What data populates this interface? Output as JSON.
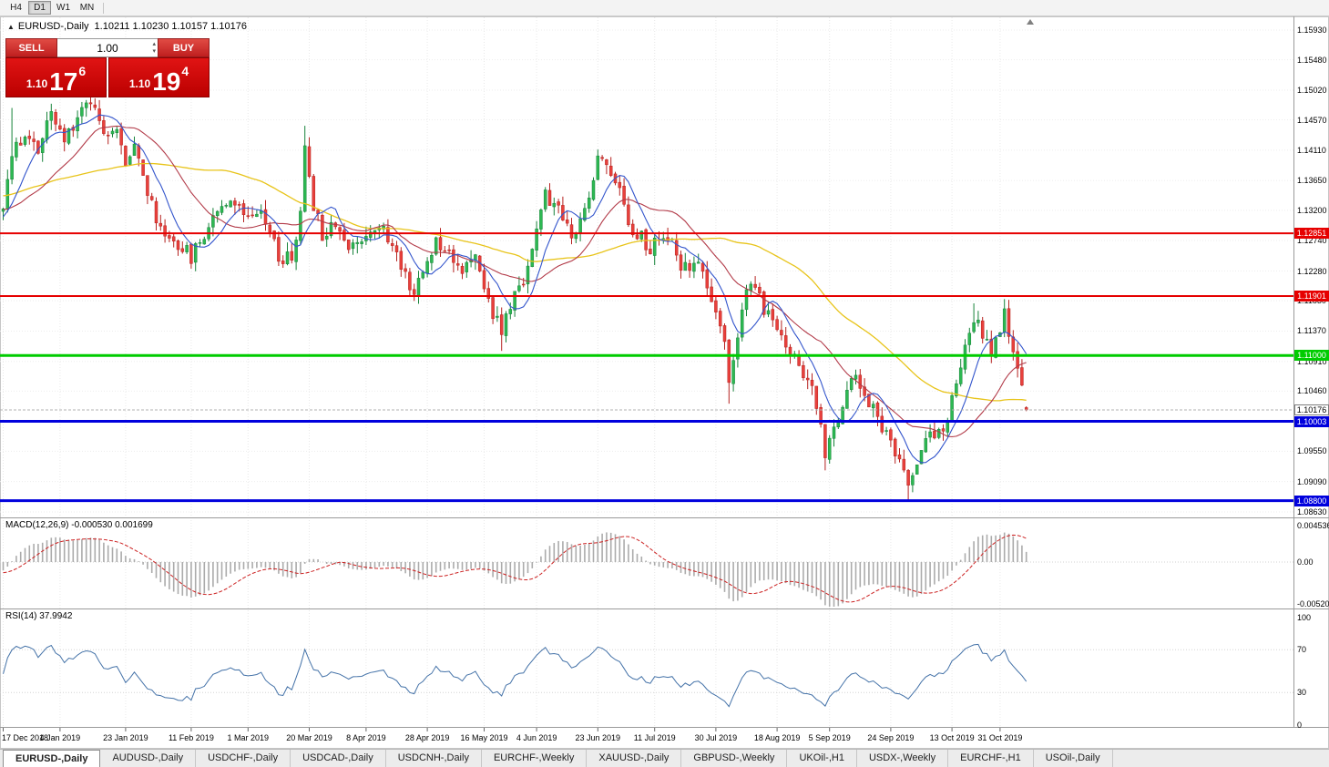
{
  "toolbar": {
    "timeframes": [
      "H4",
      "D1",
      "W1",
      "MN"
    ],
    "active": "D1"
  },
  "chart": {
    "symbol_period": "EURUSD-,Daily",
    "ohlc": "1.10211 1.10230 1.10157 1.10176"
  },
  "trade_panel": {
    "sell_label": "SELL",
    "buy_label": "BUY",
    "volume": "1.00",
    "sell_price": {
      "prefix": "1.10",
      "big": "17",
      "sup": "6"
    },
    "buy_price": {
      "prefix": "1.10",
      "big": "19",
      "sup": "4"
    }
  },
  "price_axis": {
    "labels": [
      "1.15930",
      "1.15480",
      "1.15020",
      "1.14570",
      "1.14110",
      "1.13650",
      "1.13200",
      "1.12740",
      "1.12280",
      "1.11830",
      "1.11370",
      "1.10910",
      "1.10460",
      "1.10000",
      "1.09550",
      "1.09090",
      "1.08630"
    ]
  },
  "hlines": [
    {
      "price": 1.12851,
      "label": "1.12851",
      "color": "#e60000",
      "width": 2
    },
    {
      "price": 1.11901,
      "label": "1.11901",
      "color": "#e60000",
      "width": 2
    },
    {
      "price": 1.11,
      "label": "1.11000",
      "color": "#00cc00",
      "width": 3
    },
    {
      "price": 1.10003,
      "label": "1.10003",
      "color": "#0000dd",
      "width": 3
    },
    {
      "price": 1.088,
      "label": "1.08800",
      "color": "#0000dd",
      "width": 3
    }
  ],
  "current_price": {
    "value": 1.10176,
    "label": "1.10176"
  },
  "macd": {
    "label": "MACD(12,26,9) -0.000530 0.001699",
    "axis": [
      {
        "label": "0.004536",
        "value": 0.004536
      },
      {
        "label": "0.00",
        "value": 0
      },
      {
        "label": "-0.00520",
        "value": -0.0052
      }
    ]
  },
  "rsi": {
    "label": "RSI(14) 37.9942",
    "axis": [
      {
        "label": "100",
        "value": 100
      },
      {
        "label": "70",
        "value": 70
      },
      {
        "label": "30",
        "value": 30
      },
      {
        "label": "0",
        "value": 0
      }
    ],
    "levels": [
      70,
      30
    ]
  },
  "date_axis": [
    {
      "label": "17 Dec 2018",
      "bar": 0
    },
    {
      "label": "4 Jan 2019",
      "bar": 13
    },
    {
      "label": "23 Jan 2019",
      "bar": 28
    },
    {
      "label": "11 Feb 2019",
      "bar": 43
    },
    {
      "label": "1 Mar 2019",
      "bar": 56
    },
    {
      "label": "20 Mar 2019",
      "bar": 70
    },
    {
      "label": "8 Apr 2019",
      "bar": 83
    },
    {
      "label": "28 Apr 2019",
      "bar": 97
    },
    {
      "label": "16 May 2019",
      "bar": 110
    },
    {
      "label": "4 Jun 2019",
      "bar": 122
    },
    {
      "label": "23 Jun 2019",
      "bar": 136
    },
    {
      "label": "11 Jul 2019",
      "bar": 149
    },
    {
      "label": "30 Jul 2019",
      "bar": 163
    },
    {
      "label": "18 Aug 2019",
      "bar": 177
    },
    {
      "label": "5 Sep 2019",
      "bar": 189
    },
    {
      "label": "24 Sep 2019",
      "bar": 203
    },
    {
      "label": "13 Oct 2019",
      "bar": 217
    },
    {
      "label": "31 Oct 2019",
      "bar": 228
    }
  ],
  "tabs": [
    {
      "label": "EURUSD-,Daily",
      "active": true
    },
    {
      "label": "AUDUSD-,Daily",
      "active": false
    },
    {
      "label": "USDCHF-,Daily",
      "active": false
    },
    {
      "label": "USDCAD-,Daily",
      "active": false
    },
    {
      "label": "USDCNH-,Daily",
      "active": false
    },
    {
      "label": "EURCHF-,Weekly",
      "active": false
    },
    {
      "label": "XAUUSD-,Daily",
      "active": false
    },
    {
      "label": "GBPUSD-,Weekly",
      "active": false
    },
    {
      "label": "UKOil-,H1",
      "active": false
    },
    {
      "label": "USDX-,Weekly",
      "active": false
    },
    {
      "label": "EURCHF-,H1",
      "active": false
    },
    {
      "label": "USOil-,Daily",
      "active": false
    }
  ],
  "chart_data": {
    "type": "candlestick",
    "symbol": "EURUSD",
    "timeframe": "Daily",
    "bars": 235,
    "pre_bars": 60,
    "seed": 11,
    "price_range": {
      "top": 1.1593,
      "bottom": 1.0863
    },
    "colors": {
      "up": "#2db852",
      "up_stroke": "#17833a",
      "down": "#e8403c",
      "down_stroke": "#b5221f",
      "ma_fast": "#3355cc",
      "ma_mid": "#b23a48",
      "ma_slow": "#e8c41a",
      "macd_hist": "#ababab",
      "macd_signal": "#cc2222",
      "rsi": "#4472a8"
    },
    "ma_periods": {
      "fast": 8,
      "mid": 21,
      "slow": 50
    },
    "anchors": [
      [
        -60,
        1.136
      ],
      [
        -45,
        1.131
      ],
      [
        -30,
        1.14
      ],
      [
        -15,
        1.133
      ],
      [
        -5,
        1.13
      ],
      [
        0,
        1.133
      ],
      [
        2,
        1.14
      ],
      [
        5,
        1.144
      ],
      [
        8,
        1.141
      ],
      [
        11,
        1.1465
      ],
      [
        14,
        1.1425
      ],
      [
        17,
        1.1465
      ],
      [
        20,
        1.149
      ],
      [
        23,
        1.1445
      ],
      [
        26,
        1.144
      ],
      [
        28,
        1.1385
      ],
      [
        30,
        1.143
      ],
      [
        33,
        1.1345
      ],
      [
        36,
        1.129
      ],
      [
        40,
        1.127
      ],
      [
        43,
        1.125
      ],
      [
        46,
        1.1285
      ],
      [
        49,
        1.1325
      ],
      [
        52,
        1.134
      ],
      [
        55,
        1.1315
      ],
      [
        58,
        1.1325
      ],
      [
        61,
        1.1295
      ],
      [
        63,
        1.1245
      ],
      [
        66,
        1.125
      ],
      [
        68,
        1.131
      ],
      [
        69,
        1.142
      ],
      [
        71,
        1.133
      ],
      [
        73,
        1.1285
      ],
      [
        76,
        1.1305
      ],
      [
        79,
        1.126
      ],
      [
        83,
        1.1285
      ],
      [
        86,
        1.13
      ],
      [
        89,
        1.1265
      ],
      [
        92,
        1.1225
      ],
      [
        94,
        1.1195
      ],
      [
        96,
        1.1225
      ],
      [
        99,
        1.1275
      ],
      [
        102,
        1.126
      ],
      [
        105,
        1.123
      ],
      [
        108,
        1.1245
      ],
      [
        110,
        1.1205
      ],
      [
        112,
        1.1165
      ],
      [
        114,
        1.1135
      ],
      [
        116,
        1.1175
      ],
      [
        119,
        1.1215
      ],
      [
        122,
        1.129
      ],
      [
        124,
        1.134
      ],
      [
        126,
        1.133
      ],
      [
        128,
        1.1305
      ],
      [
        131,
        1.1275
      ],
      [
        134,
        1.1345
      ],
      [
        136,
        1.14
      ],
      [
        138,
        1.139
      ],
      [
        140,
        1.137
      ],
      [
        143,
        1.13
      ],
      [
        146,
        1.128
      ],
      [
        148,
        1.1255
      ],
      [
        150,
        1.128
      ],
      [
        153,
        1.127
      ],
      [
        155,
        1.1225
      ],
      [
        158,
        1.1245
      ],
      [
        161,
        1.1205
      ],
      [
        163,
        1.1155
      ],
      [
        165,
        1.1125
      ],
      [
        166,
        1.1065
      ],
      [
        168,
        1.112
      ],
      [
        170,
        1.12
      ],
      [
        172,
        1.1205
      ],
      [
        174,
        1.117
      ],
      [
        177,
        1.1145
      ],
      [
        180,
        1.1105
      ],
      [
        183,
        1.1075
      ],
      [
        185,
        1.1045
      ],
      [
        187,
        1.0995
      ],
      [
        188,
        1.0945
      ],
      [
        190,
        1.0985
      ],
      [
        192,
        1.103
      ],
      [
        194,
        1.107
      ],
      [
        197,
        1.1045
      ],
      [
        200,
        1.1005
      ],
      [
        203,
        1.0965
      ],
      [
        205,
        1.0935
      ],
      [
        207,
        1.0905
      ],
      [
        209,
        1.0945
      ],
      [
        212,
        1.0985
      ],
      [
        215,
        1.0975
      ],
      [
        217,
        1.104
      ],
      [
        220,
        1.1105
      ],
      [
        222,
        1.1155
      ],
      [
        224,
        1.1135
      ],
      [
        226,
        1.1105
      ],
      [
        229,
        1.116
      ],
      [
        231,
        1.1105
      ],
      [
        233,
        1.1045
      ],
      [
        234,
        1.1018
      ]
    ],
    "wicks": [
      {
        "i": 2,
        "h": 1.1475
      },
      {
        "i": 20,
        "h": 1.1512
      },
      {
        "i": 69,
        "h": 1.1448
      },
      {
        "i": 114,
        "l": 1.1107
      },
      {
        "i": 136,
        "h": 1.1412
      },
      {
        "i": 166,
        "l": 1.1027
      },
      {
        "i": 188,
        "l": 1.0926
      },
      {
        "i": 207,
        "l": 1.0879
      },
      {
        "i": 222,
        "h": 1.1179
      }
    ],
    "last_bar": {
      "o": 1.10211,
      "h": 1.1023,
      "l": 1.10157,
      "c": 1.10176
    }
  }
}
